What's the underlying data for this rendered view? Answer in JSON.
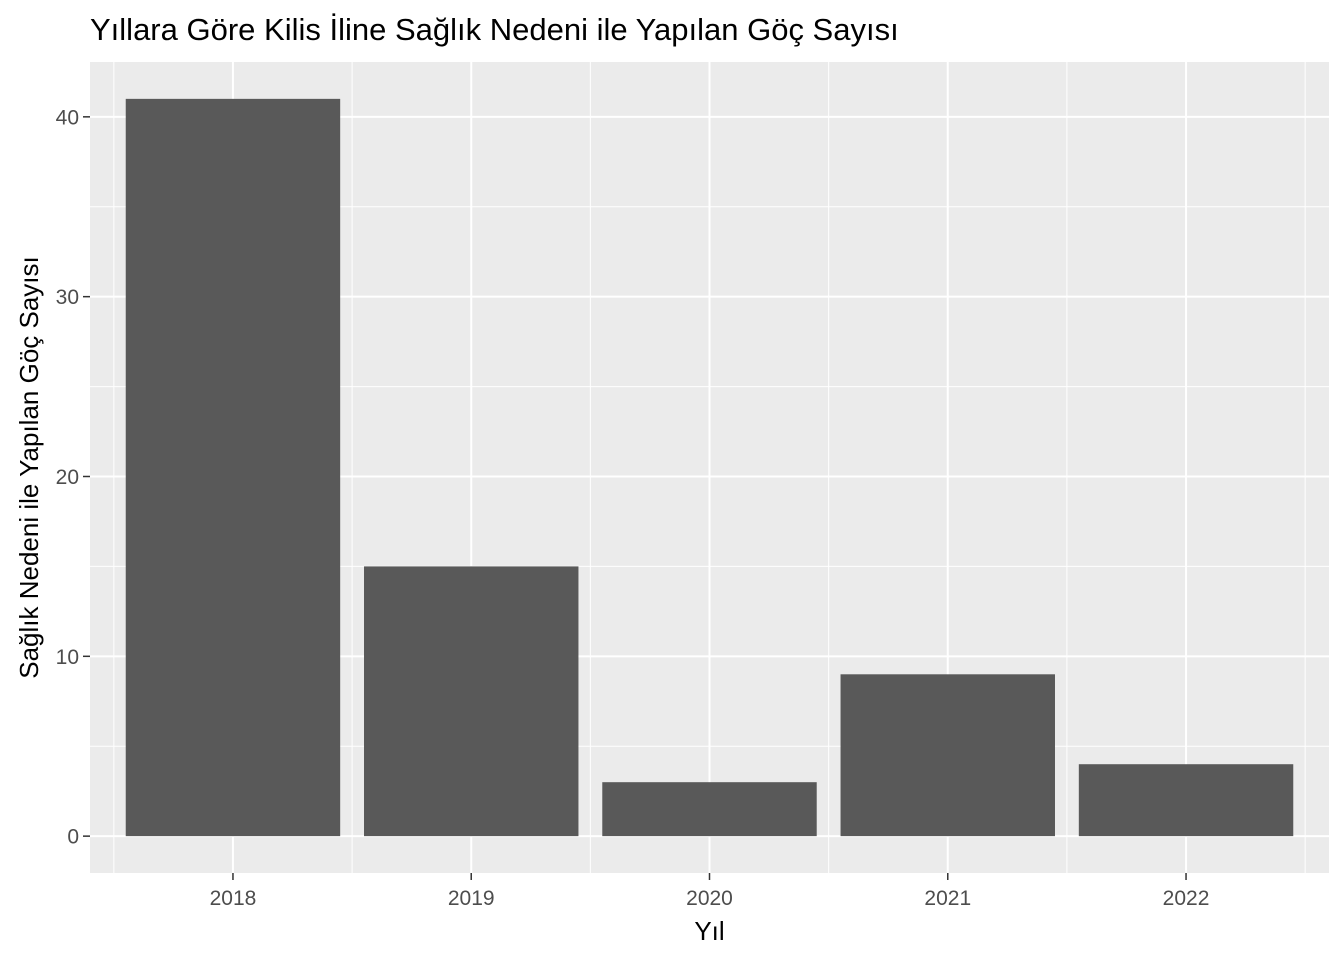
{
  "chart_data": {
    "type": "bar",
    "title": "Yıllara Göre Kilis İline Sağlık Nedeni ile Yapılan Göç Sayısı",
    "xlabel": "Yıl",
    "ylabel": "Sağlık Nedeni ile Yapılan Göç Sayısı",
    "categories": [
      "2018",
      "2019",
      "2020",
      "2021",
      "2022"
    ],
    "values": [
      41,
      15,
      3,
      9,
      4
    ],
    "ylim": [
      -2.05,
      43.05
    ],
    "y_ticks": [
      0,
      10,
      20,
      30,
      40
    ],
    "y_tick_labels": [
      "0",
      "10",
      "20",
      "30",
      "40"
    ],
    "grid": true,
    "legend": "none",
    "colors": {
      "panel_background": "#EBEBEB",
      "grid_major": "#FFFFFF",
      "bar_fill": "#595959",
      "tick_text": "#4D4D4D",
      "tick_mark": "#333333",
      "title_text": "#000000"
    }
  }
}
